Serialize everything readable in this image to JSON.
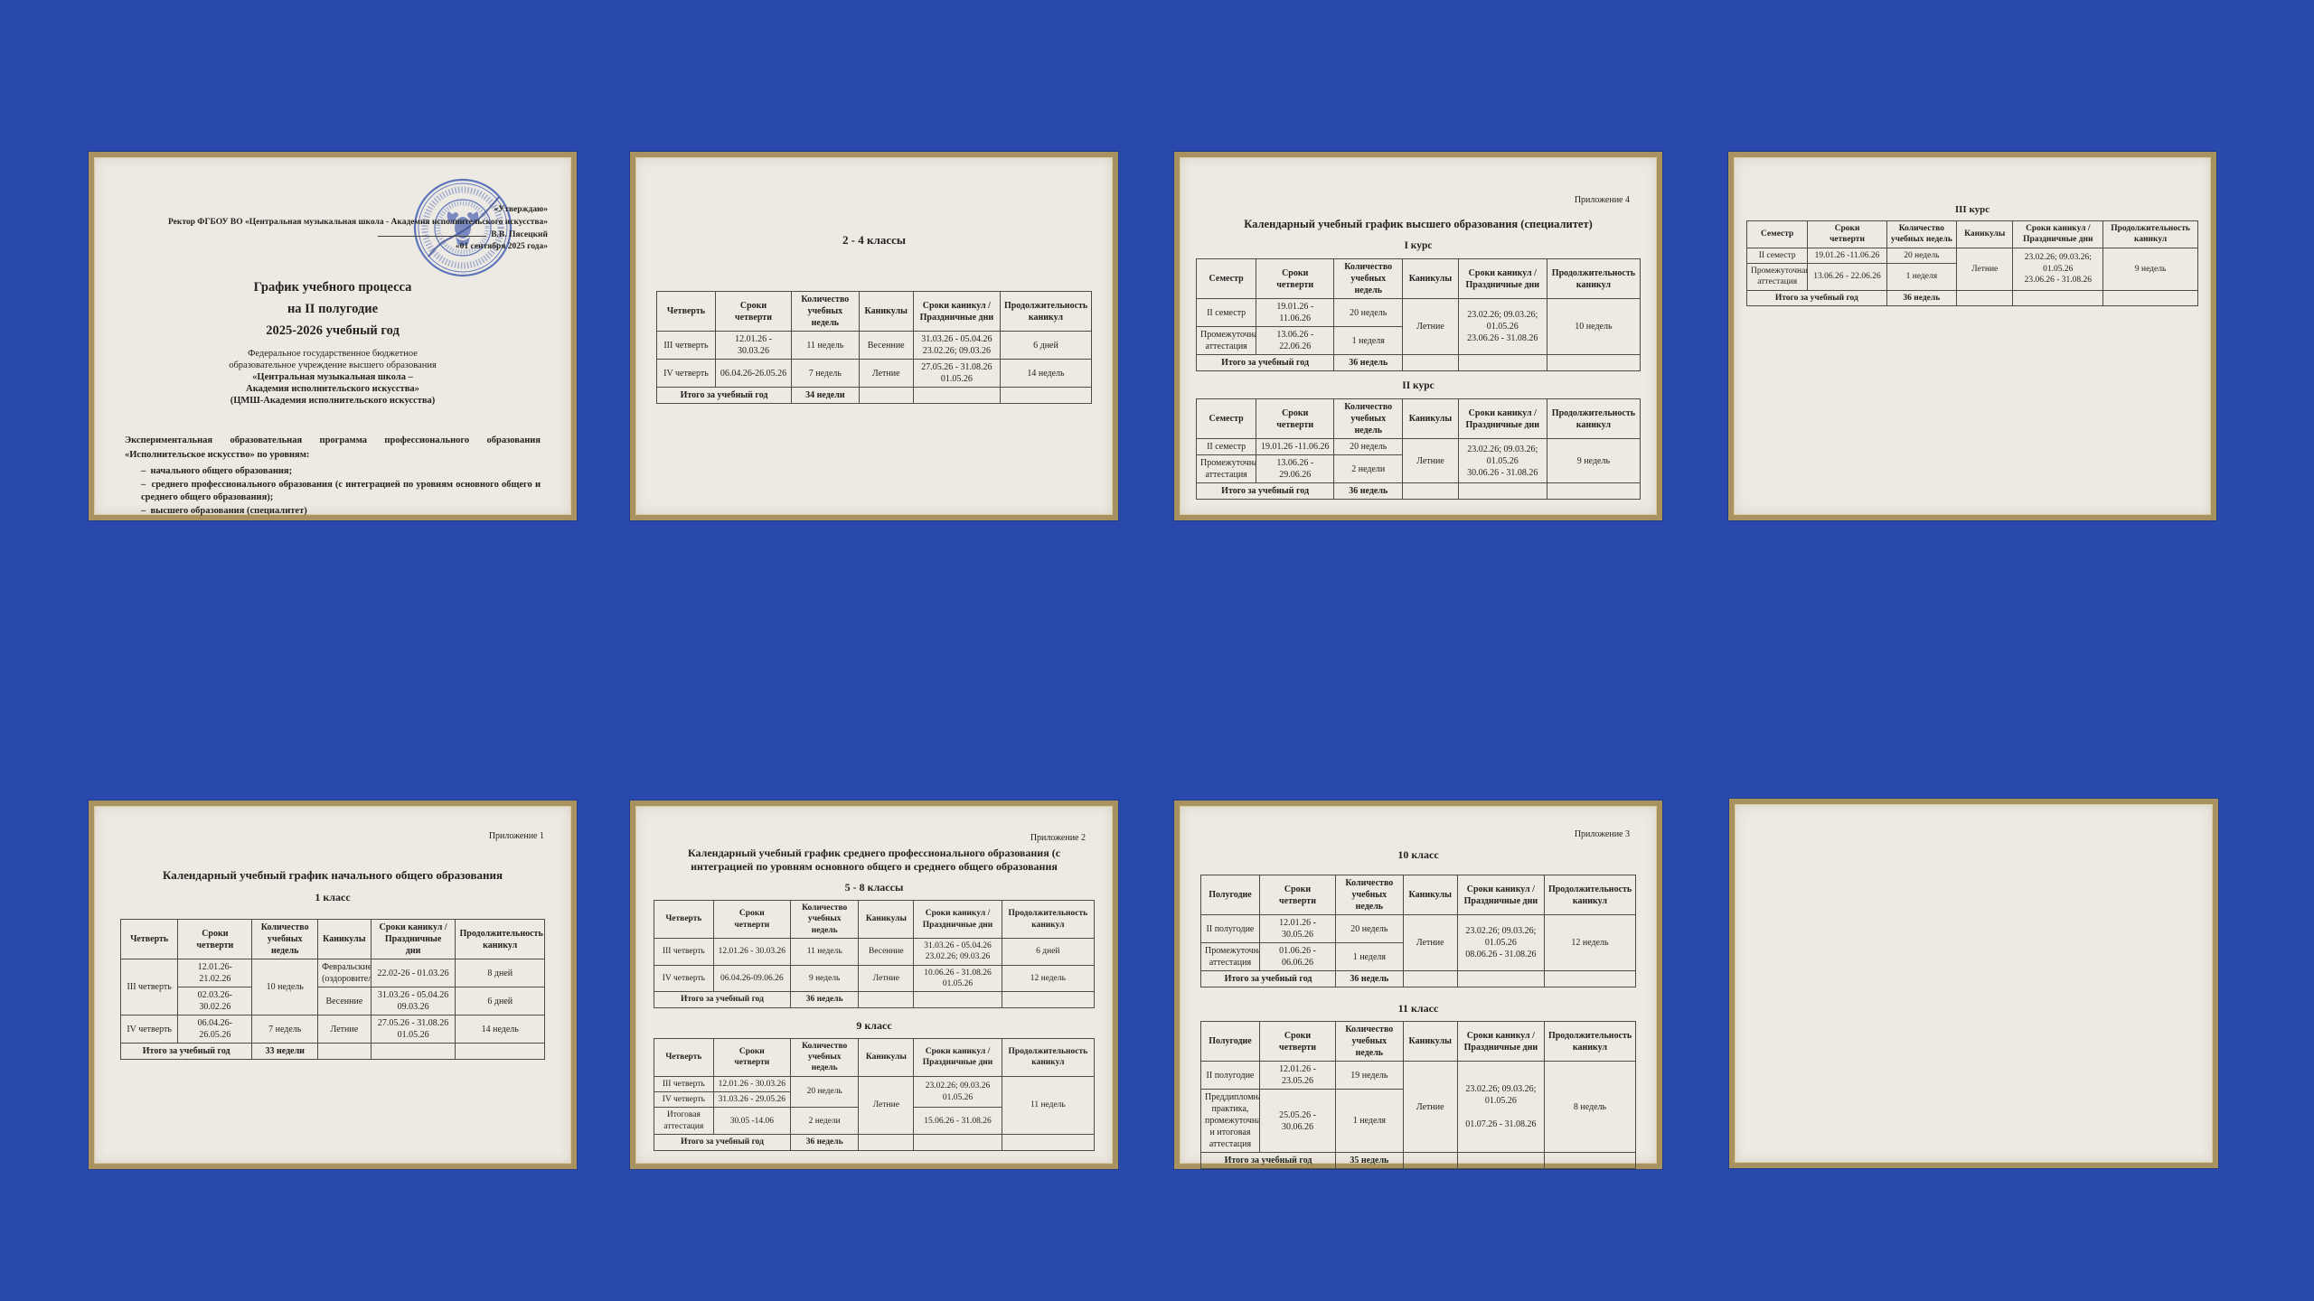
{
  "background_color": "#2a49ad",
  "paper_color": "#edeae3",
  "frame_color": "#a8925f",
  "stamp_color": "#4a63b5",
  "p1": {
    "approval": {
      "approved": "«Утверждаю»",
      "rector_line": "Ректор ФГБОУ ВО «Центральная музыкальная школа - Академия исполнительского искусства»",
      "signatory": "В.В. Пясецкий",
      "date": "«01 сентября 2025 года»"
    },
    "title_lines": [
      "График учебного процесса",
      "на II полугодие",
      "2025-2026 учебный год"
    ],
    "org_lines": [
      "Федеральное государственное бюджетное",
      "образовательное учреждение высшего образования"
    ],
    "org_bold_lines": [
      "«Центральная музыкальная школа –",
      "Академия исполнительского искусства»",
      "(ЦМШ-Академия исполнительского искусства)"
    ],
    "program_intro": "Экспериментальная образовательная программа профессионального образования «Исполнительское искусство» по уровням:",
    "levels": [
      "начального общего образования;",
      "среднего профессионального образования (с интеграцией по уровням основного общего и среднего общего образования);",
      "высшего образования (специалитет)"
    ]
  },
  "p2": {
    "title": "2 - 4 классы",
    "table": {
      "headers": [
        "Четверть",
        "Сроки\nчетверти",
        "Количество\nучебных недель",
        "Каникулы",
        "Сроки каникул /\nПраздничные дни",
        "Продолжительность\nканикул"
      ],
      "rows": [
        [
          "III четверть",
          "12.01.26 - 30.03.26",
          "11 недель",
          "Весенние",
          "31.03.26 - 05.04.26\n23.02.26; 09.03.26",
          "6 дней"
        ],
        [
          "IV четверть",
          "06.04.26-26.05.26",
          "7 недель",
          "Летние",
          "27.05.26 - 31.08.26\n01.05.26",
          "14 недель"
        ],
        [
          {
            "t": "Итого за учебный год",
            "cs": 2,
            "b": true
          },
          {
            "t": "34 недели",
            "b": true
          },
          "",
          "",
          ""
        ]
      ]
    }
  },
  "p3": {
    "annex": "Приложение 4",
    "title": "Календарный учебный график высшего образования (специалитет)",
    "course1_title": "I курс",
    "course1": {
      "headers": [
        "Семестр",
        "Сроки\nчетверти",
        "Количество\nучебных недель",
        "Каникулы",
        "Сроки каникул /\nПраздничные дни",
        "Продолжительность\nканикул"
      ],
      "rows": [
        [
          "II семестр",
          "19.01.26 - 11.06.26",
          "20 недель",
          {
            "t": "Летние",
            "rs": 2
          },
          {
            "t": "23.02.26; 09.03.26;\n01.05.26\n23.06.26 - 31.08.26",
            "rs": 2
          },
          {
            "t": "10 недель",
            "rs": 2
          }
        ],
        [
          "Промежуточная\nаттестация",
          "13.06.26 - 22.06.26",
          "1 неделя"
        ],
        [
          {
            "t": "Итого за учебный год",
            "cs": 2,
            "b": true
          },
          {
            "t": "36 недель",
            "b": true
          },
          "",
          "",
          ""
        ]
      ]
    },
    "course2_title": "II курс",
    "course2": {
      "headers": [
        "Семестр",
        "Сроки\nчетверти",
        "Количество\nучебных недель",
        "Каникулы",
        "Сроки каникул /\nПраздничные дни",
        "Продолжительность\nканикул"
      ],
      "rows": [
        [
          "II семестр",
          "19.01.26 -11.06.26",
          "20 недель",
          {
            "t": "Летние",
            "rs": 2
          },
          {
            "t": "23.02.26; 09.03.26;\n01.05.26\n30.06.26 - 31.08.26",
            "rs": 2
          },
          {
            "t": "9 недель",
            "rs": 2
          }
        ],
        [
          "Промежуточная\nаттестация",
          "13.06.26 - 29.06.26",
          "2 недели"
        ],
        [
          {
            "t": "Итого за учебный год",
            "cs": 2,
            "b": true
          },
          {
            "t": "36 недель",
            "b": true
          },
          "",
          "",
          ""
        ]
      ]
    }
  },
  "p4": {
    "title": "III курс",
    "table": {
      "headers": [
        "Семестр",
        "Сроки\nчетверти",
        "Количество\nучебных недель",
        "Каникулы",
        "Сроки каникул /\nПраздничные дни",
        "Продолжительность\nканикул"
      ],
      "rows": [
        [
          "II семестр",
          "19.01.26 -11.06.26",
          "20 недель",
          {
            "t": "Летние",
            "rs": 2
          },
          {
            "t": "23.02.26; 09.03.26;\n01.05.26\n23.06.26 - 31.08.26",
            "rs": 2
          },
          {
            "t": "9 недель",
            "rs": 2
          }
        ],
        [
          "Промежуточная\nаттестация",
          "13.06.26 - 22.06.26",
          "1 неделя"
        ],
        [
          {
            "t": "Итого за учебный год",
            "cs": 2,
            "b": true
          },
          {
            "t": "36 недель",
            "b": true
          },
          "",
          "",
          ""
        ]
      ]
    }
  },
  "p5": {
    "annex": "Приложение 1",
    "title": "Календарный учебный график начального общего образования",
    "subtitle": "1 класс",
    "table": {
      "headers": [
        "Четверть",
        "Сроки\nчетверти",
        "Количество\nучебных недель",
        "Каникулы",
        "Сроки каникул /\nПраздничные\nдни",
        "Продолжительность\nканикул"
      ],
      "rows": [
        [
          {
            "t": "III четверть",
            "rs": 2
          },
          "12.01.26-21.02.26",
          {
            "t": "10 недель",
            "rs": 2
          },
          "Февральские\n(оздоровительные)",
          "22.02-26 - 01.03.26",
          "8 дней"
        ],
        [
          "02.03.26-30.02.26",
          "Весенние",
          "31.03.26 - 05.04.26\n09.03.26",
          "6 дней"
        ],
        [
          "IV четверть",
          "06.04.26-26.05.26",
          "7 недель",
          "Летние",
          "27.05.26 - 31.08.26\n01.05.26",
          "14 недель"
        ],
        [
          {
            "t": "Итого за учебный год",
            "cs": 2,
            "b": true
          },
          {
            "t": "33 недели",
            "b": true
          },
          "",
          "",
          ""
        ]
      ]
    }
  },
  "p6": {
    "annex": "Приложение 2",
    "title": "Календарный учебный график среднего профессионального образования (с интеграцией по уровням основного общего и среднего общего образования",
    "subtitle1": "5 - 8 классы",
    "table1": {
      "headers": [
        "Четверть",
        "Сроки\nчетверти",
        "Количество\nучебных недель",
        "Каникулы",
        "Сроки каникул /\nПраздничные дни",
        "Продолжительность\nканикул"
      ],
      "rows": [
        [
          "III четверть",
          "12.01.26 - 30.03.26",
          "11 недель",
          "Весенние",
          "31.03.26 - 05.04.26\n23.02.26; 09.03.26",
          "6 дней"
        ],
        [
          "IV четверть",
          "06.04.26-09.06.26",
          "9 недель",
          "Летние",
          "10.06.26 - 31.08.26\n01.05.26",
          "12 недель"
        ],
        [
          {
            "t": "Итого за учебный год",
            "cs": 2,
            "b": true
          },
          {
            "t": "36 недель",
            "b": true
          },
          "",
          "",
          ""
        ]
      ]
    },
    "subtitle2": "9 класс",
    "table2": {
      "headers": [
        "Четверть",
        "Сроки\nчетверти",
        "Количество\nучебных недель",
        "Каникулы",
        "Сроки каникул /\nПраздничные дни",
        "Продолжительность\nканикул"
      ],
      "rows": [
        [
          "III четверть",
          "12.01.26 - 30.03.26",
          {
            "t": "20 недель",
            "rs": 2
          },
          {
            "t": "Летние",
            "rs": 3
          },
          {
            "t": "23.02.26; 09.03.26\n01.05.26",
            "rs": 2
          },
          {
            "t": "11 недель",
            "rs": 3
          }
        ],
        [
          "IV четверть",
          "31.03.26 - 29.05.26"
        ],
        [
          "Итоговая\nаттестация",
          "30.05 -14.06",
          "2 недели",
          "15.06.26 - 31.08.26"
        ],
        [
          {
            "t": "Итого за учебный год",
            "cs": 2,
            "b": true
          },
          {
            "t": "36 недель",
            "b": true
          },
          "",
          "",
          ""
        ]
      ]
    }
  },
  "p7": {
    "annex": "Приложение 3",
    "title1": "10 класс",
    "table1": {
      "headers": [
        "Полугодие",
        "Сроки\nчетверти",
        "Количество\nучебных\nнедель",
        "Каникулы",
        "Сроки каникул /\nПраздничные дни",
        "Продолжительность\nканикул"
      ],
      "rows": [
        [
          "II полугодие",
          "12.01.26 - 30.05.26",
          "20 недель",
          {
            "t": "Летние",
            "rs": 2
          },
          {
            "t": "23.02.26; 09.03.26;\n01.05.26\n08.06.26 - 31.08.26",
            "rs": 2
          },
          {
            "t": "12 недель",
            "rs": 2
          }
        ],
        [
          "Промежуточная\nаттестация",
          "01.06.26 - 06.06.26",
          "1 неделя"
        ],
        [
          {
            "t": "Итого за учебный год",
            "cs": 2,
            "b": true
          },
          {
            "t": "36 недель",
            "b": true
          },
          "",
          "",
          ""
        ]
      ]
    },
    "title2": "11 класс",
    "table2": {
      "headers": [
        "Полугодие",
        "Сроки\nчетверти",
        "Количество\nучебных\nнедель",
        "Каникулы",
        "Сроки каникул /\nПраздничные дни",
        "Продолжительность\nканикул"
      ],
      "rows": [
        [
          "II полугодие",
          "12.01.26 - 23.05.26",
          "19 недель",
          {
            "t": "Летние",
            "rs": 2
          },
          {
            "t": "23.02.26; 09.03.26;\n01.05.26\n\n01.07.26 - 31.08.26",
            "rs": 2
          },
          {
            "t": "8 недель",
            "rs": 2
          }
        ],
        [
          "Преддипломная\nпрактика,\nпромежуточная\nи итоговая\nаттестация",
          "25.05.26 - 30.06.26",
          "1 неделя"
        ],
        [
          {
            "t": "Итого за учебный год",
            "cs": 2,
            "b": true
          },
          {
            "t": "35 недель",
            "b": true
          },
          "",
          "",
          ""
        ]
      ]
    }
  }
}
